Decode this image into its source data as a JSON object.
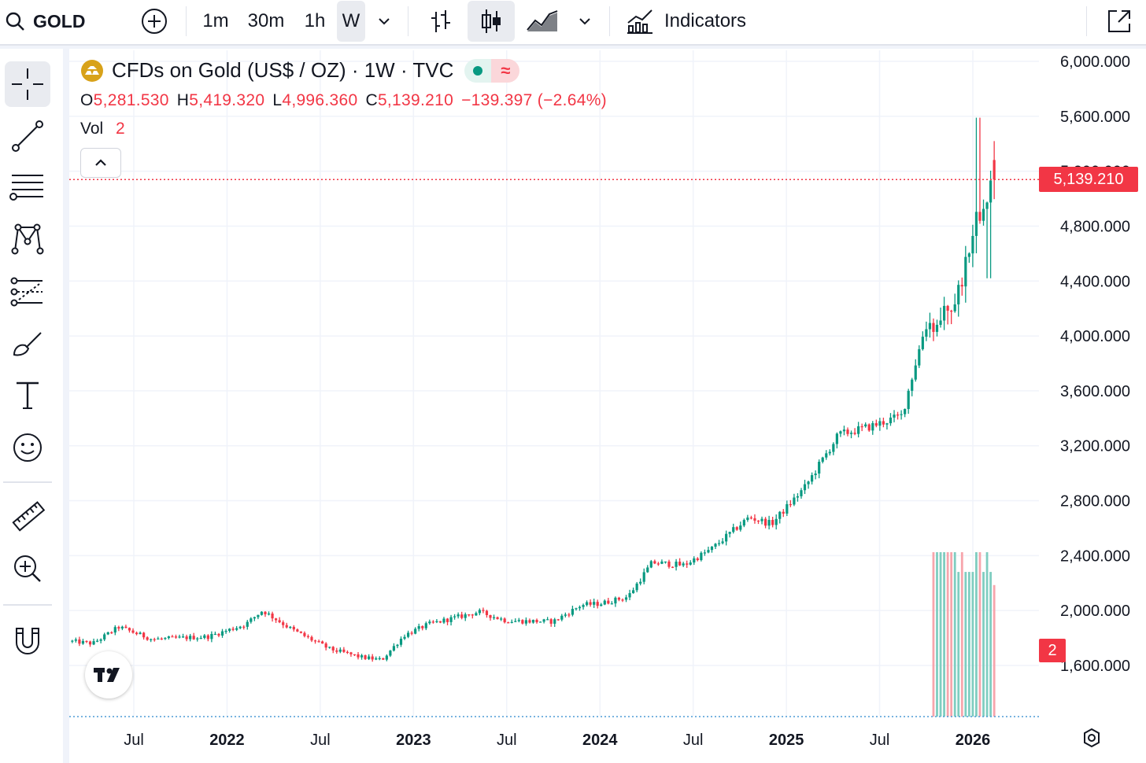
{
  "toolbar": {
    "symbol": "GOLD",
    "intervals": [
      "1m",
      "30m",
      "1h",
      "W"
    ],
    "active_interval": "W",
    "indicators_label": "Indicators"
  },
  "legend": {
    "title": "CFDs on Gold (US$ / OZ) · 1W · TVC",
    "open_label": "O",
    "open": "5,281.530",
    "high_label": "H",
    "high": "5,419.320",
    "low_label": "L",
    "low": "4,996.360",
    "close_label": "C",
    "close": "5,139.210",
    "change": "−139.397 (−2.64%)",
    "vol_label": "Vol",
    "vol_value": "2"
  },
  "price_tag": "5,139.210",
  "vol_tag": "2",
  "colors": {
    "up": "#089981",
    "down": "#f23645",
    "accent": "#f23645"
  },
  "chart_data": {
    "type": "candlestick",
    "title": "CFDs on Gold (US$ / OZ) · 1W · TVC",
    "y_axis_ticks": [
      "6,000.000",
      "5,600.000",
      "5,200.000",
      "4,800.000",
      "4,400.000",
      "4,000.000",
      "3,600.000",
      "3,200.000",
      "2,800.000",
      "2,400.000",
      "2,000.000",
      "1,600.000"
    ],
    "y_tick_values": [
      6000,
      5600,
      5200,
      4800,
      4400,
      4000,
      3600,
      3200,
      2800,
      2400,
      2000,
      1600
    ],
    "ylim": [
      1200,
      6080
    ],
    "x_axis_ticks": [
      {
        "label": "Jul",
        "t": 2021.5,
        "bold": false
      },
      {
        "label": "2022",
        "t": 2022.0,
        "bold": true
      },
      {
        "label": "Jul",
        "t": 2022.5,
        "bold": false
      },
      {
        "label": "2023",
        "t": 2023.0,
        "bold": true
      },
      {
        "label": "Jul",
        "t": 2023.5,
        "bold": false
      },
      {
        "label": "2024",
        "t": 2024.0,
        "bold": true
      },
      {
        "label": "Jul",
        "t": 2024.5,
        "bold": false
      },
      {
        "label": "2025",
        "t": 2025.0,
        "bold": true
      },
      {
        "label": "Jul",
        "t": 2025.5,
        "bold": false
      },
      {
        "label": "2026",
        "t": 2026.0,
        "bold": true
      }
    ],
    "xlim": [
      2021.17,
      2026.5
    ],
    "trend_anchors": [
      [
        2021.17,
        1775
      ],
      [
        2021.28,
        1760
      ],
      [
        2021.42,
        1880
      ],
      [
        2021.6,
        1790
      ],
      [
        2021.75,
        1800
      ],
      [
        2021.9,
        1810
      ],
      [
        2022.1,
        1900
      ],
      [
        2022.19,
        2000
      ],
      [
        2022.35,
        1860
      ],
      [
        2022.55,
        1720
      ],
      [
        2022.72,
        1660
      ],
      [
        2022.83,
        1640
      ],
      [
        2022.95,
        1820
      ],
      [
        2023.08,
        1900
      ],
      [
        2023.35,
        1990
      ],
      [
        2023.5,
        1925
      ],
      [
        2023.75,
        1920
      ],
      [
        2023.9,
        2040
      ],
      [
        2024.0,
        2050
      ],
      [
        2024.15,
        2100
      ],
      [
        2024.28,
        2350
      ],
      [
        2024.45,
        2330
      ],
      [
        2024.6,
        2450
      ],
      [
        2024.8,
        2680
      ],
      [
        2024.92,
        2630
      ],
      [
        2025.1,
        2900
      ],
      [
        2025.28,
        3280
      ],
      [
        2025.45,
        3340
      ],
      [
        2025.62,
        3420
      ],
      [
        2025.75,
        4100
      ],
      [
        2025.82,
        4080
      ],
      [
        2025.92,
        4300
      ],
      [
        2026.0,
        4800
      ],
      [
        2026.08,
        5100
      ],
      [
        2026.12,
        5140
      ]
    ],
    "volume_visible_from": 2025.78,
    "volume_scale": [
      0,
      2.5
    ],
    "last": {
      "open": 5281.53,
      "high": 5419.32,
      "low": 4996.36,
      "close": 5139.21,
      "volume": 2
    },
    "current_price": 5139.21
  }
}
